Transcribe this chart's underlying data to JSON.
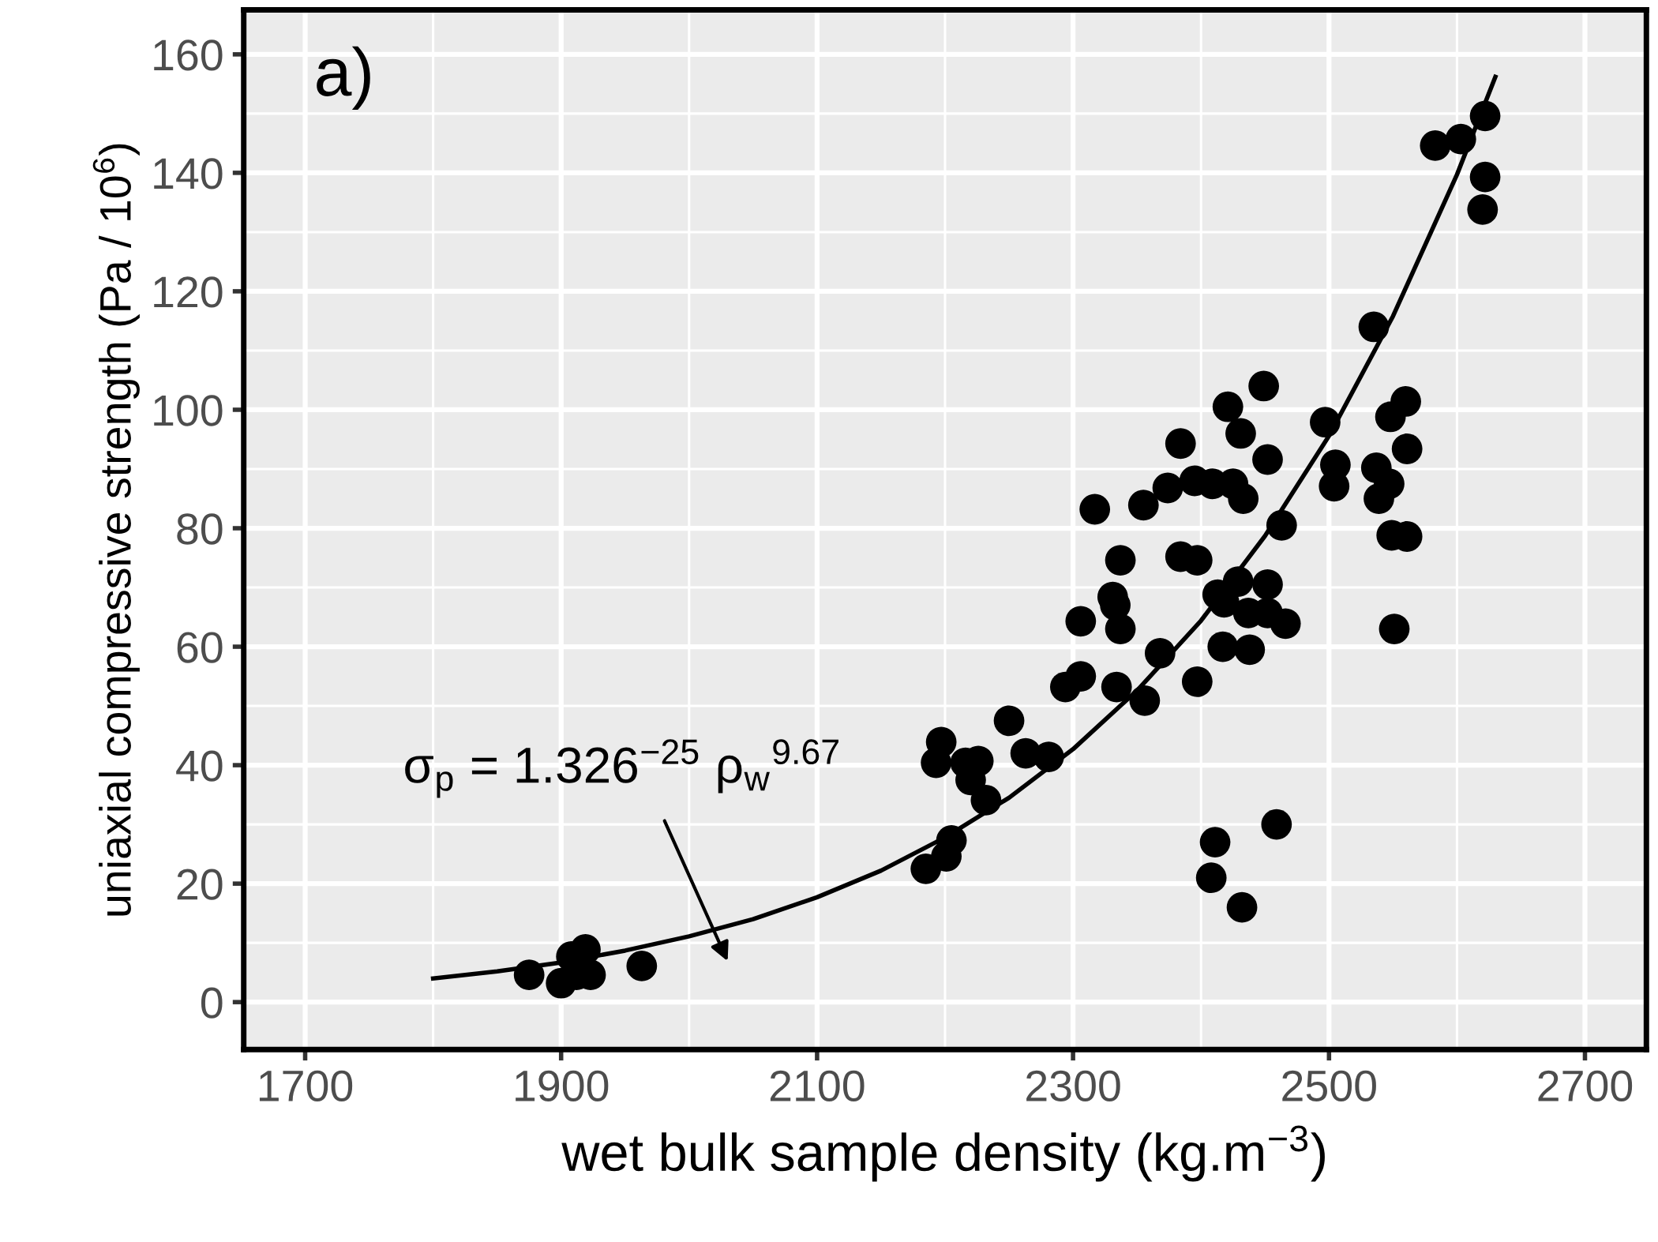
{
  "chart_data": {
    "type": "scatter",
    "xlabel": "wet bulk sample density (kg.m$^{−3}$)",
    "ylabel": "uniaxial compressive strength (Pa / 10$^{6}$)",
    "xlim": [
      1652,
      2748
    ],
    "ylim": [
      -8,
      167.5
    ],
    "xticks": [
      1700,
      1900,
      2100,
      2300,
      2500,
      2700
    ],
    "yticks": [
      0,
      20,
      40,
      60,
      80,
      100,
      120,
      140,
      160
    ],
    "grid": true,
    "annotations": [
      "a)",
      "σ$_{p}$ = 1.326$^{−25}$ ρ$_{w}$$^{9.67}$"
    ],
    "series": [
      {
        "marker": "circle",
        "color": "#000000",
        "x": [
          1875,
          1900,
          1908,
          1919,
          1923,
          1912,
          1963,
          2185,
          2201,
          2205,
          2193,
          2197,
          2216,
          2226,
          2220,
          2232,
          2250,
          2263,
          2281,
          2294,
          2306,
          2306,
          2317,
          2331,
          2333,
          2337,
          2337,
          2334,
          2355,
          2356,
          2368,
          2374,
          2384,
          2384,
          2395,
          2397,
          2397,
          2409,
          2413,
          2418,
          2417,
          2421,
          2425,
          2429,
          2431,
          2433,
          2437,
          2438,
          2449,
          2452,
          2452,
          2452,
          2463,
          2466,
          2408,
          2411,
          2432,
          2459,
          2497,
          2505,
          2504,
          2535,
          2537,
          2539,
          2547,
          2548,
          2560,
          2561,
          2549,
          2561,
          2551,
          2583,
          2603,
          2622,
          2622,
          2620
        ],
        "values": [
          4.6,
          3.2,
          7.7,
          8.9,
          4.6,
          4.6,
          6.1,
          22.5,
          24.6,
          27.3,
          40.4,
          43.9,
          40.4,
          40.7,
          37.5,
          34.1,
          47.5,
          42,
          41.4,
          53.2,
          55,
          64.3,
          83.2,
          68.4,
          67,
          74.6,
          63,
          53.2,
          83.9,
          50.9,
          58.9,
          86.8,
          94.3,
          75.2,
          88,
          74.6,
          54.1,
          87.5,
          68.8,
          67.5,
          60,
          100.5,
          87.5,
          71,
          96,
          85,
          65.7,
          59.5,
          104,
          91.6,
          70.5,
          65.7,
          80.5,
          63.9,
          21,
          27,
          16,
          30,
          97.9,
          90.7,
          87.1,
          114,
          90.2,
          85,
          87.5,
          98.8,
          101.4,
          93.4,
          78.8,
          78.6,
          63,
          144.6,
          145.7,
          149.6,
          139.3,
          133.8
        ]
      },
      {
        "type": "line",
        "color": "#000000",
        "line_style": "solid",
        "x": [
          1800,
          1850,
          1900,
          1950,
          2000,
          2050,
          2100,
          2150,
          2200,
          2250,
          2300,
          2350,
          2400,
          2450,
          2500,
          2550,
          2600,
          2630
        ],
        "values": [
          4.0,
          5.2,
          6.7,
          8.7,
          11.1,
          14.0,
          17.7,
          22.2,
          27.8,
          34.5,
          42.7,
          52.6,
          64.4,
          78.7,
          95.6,
          115.8,
          139.7,
          156.2
        ]
      }
    ]
  }
}
